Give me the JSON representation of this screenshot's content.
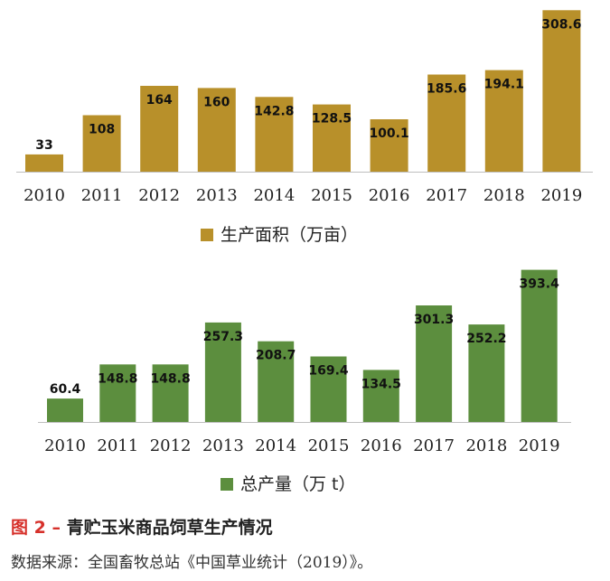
{
  "chart_data": [
    {
      "type": "bar",
      "categories": [
        "2010",
        "2011",
        "2012",
        "2013",
        "2014",
        "2015",
        "2016",
        "2017",
        "2018",
        "2019"
      ],
      "series": [
        {
          "name": "生产面积（万亩）",
          "values": [
            33,
            108,
            164,
            160,
            142.8,
            128.5,
            100.1,
            185.6,
            194.1,
            308.6
          ]
        }
      ],
      "data_labels": [
        "33",
        "108",
        "164",
        "160",
        "142.8",
        "128.5",
        "100.1",
        "185.6",
        "194.1",
        "308.6"
      ],
      "ylim": [
        0,
        320
      ],
      "grid": false,
      "legend_position": "bottom",
      "color": "#b8902a"
    },
    {
      "type": "bar",
      "categories": [
        "2010",
        "2011",
        "2012",
        "2013",
        "2014",
        "2015",
        "2016",
        "2017",
        "2018",
        "2019"
      ],
      "series": [
        {
          "name": "总产量（万 t）",
          "values": [
            60.4,
            148.8,
            148.8,
            257.3,
            208.7,
            169.4,
            134.5,
            301.3,
            252.2,
            393.4
          ]
        }
      ],
      "data_labels": [
        "60.4",
        "148.8",
        "148.8",
        "257.3",
        "208.7",
        "169.4",
        "134.5",
        "301.3",
        "252.2",
        "393.4"
      ],
      "ylim": [
        0,
        410
      ],
      "grid": false,
      "legend_position": "bottom",
      "color": "#5c8e3e"
    }
  ],
  "caption": {
    "figure_number": "图 2 –",
    "title": "青贮玉米商品饲草生产情况"
  },
  "source_note": "数据来源：全国畜牧总站《中国草业统计（2019）》。"
}
